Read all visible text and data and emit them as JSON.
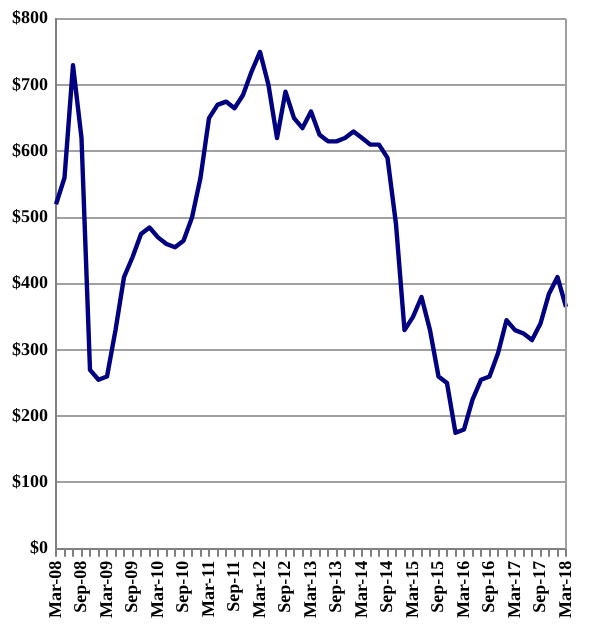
{
  "chart_data": {
    "type": "line",
    "categories": [
      "Mar-08",
      null,
      null,
      "Sep-08",
      null,
      null,
      "Mar-09",
      null,
      null,
      "Sep-09",
      null,
      null,
      "Mar-10",
      null,
      null,
      "Sep-10",
      null,
      null,
      "Mar-11",
      null,
      null,
      "Sep-11",
      null,
      null,
      "Mar-12",
      null,
      null,
      "Sep-12",
      null,
      null,
      "Mar-13",
      null,
      null,
      "Sep-13",
      null,
      null,
      "Mar-14",
      null,
      null,
      "Sep-14",
      null,
      null,
      "Mar-15",
      null,
      null,
      "Sep-15",
      null,
      null,
      "Mar-16",
      null,
      null,
      "Sep-16",
      null,
      null,
      "Mar-17",
      null,
      null,
      "Sep-17",
      null,
      null,
      "Mar-18"
    ],
    "series": [
      {
        "color": "#000080",
        "values": [
          520,
          560,
          730,
          620,
          270,
          255,
          260,
          330,
          410,
          440,
          475,
          485,
          470,
          460,
          455,
          465,
          500,
          560,
          650,
          670,
          675,
          665,
          685,
          720,
          750,
          700,
          620,
          690,
          650,
          635,
          660,
          625,
          615,
          615,
          620,
          630,
          620,
          610,
          610,
          590,
          490,
          330,
          350,
          380,
          330,
          260,
          250,
          175,
          180,
          225,
          255,
          260,
          295,
          345,
          330,
          325,
          315,
          340,
          385,
          410,
          365
        ]
      }
    ],
    "ylim": [
      0,
      800
    ],
    "yticks": [
      {
        "value": 0,
        "label": "$0"
      },
      {
        "value": 100,
        "label": "$100"
      },
      {
        "value": 200,
        "label": "$200"
      },
      {
        "value": 300,
        "label": "$300"
      },
      {
        "value": 400,
        "label": "$400"
      },
      {
        "value": 500,
        "label": "$500"
      },
      {
        "value": 600,
        "label": "$600"
      },
      {
        "value": 700,
        "label": "$700"
      },
      {
        "value": 800,
        "label": "$800"
      }
    ],
    "grid": "y",
    "legend": false,
    "marker": "none",
    "line_style": "solid"
  }
}
